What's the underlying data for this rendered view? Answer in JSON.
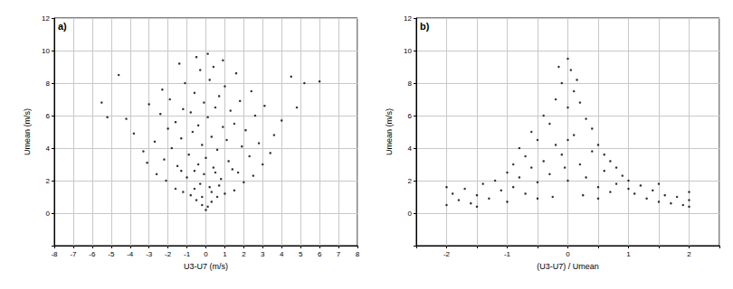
{
  "chart_data": [
    {
      "type": "scatter",
      "annotation": "a)",
      "xlabel": "U3-U7 (m/s)",
      "ylabel": "Umean (m/s)",
      "color": "#000000",
      "marker": "circle",
      "grid": true,
      "xlim": [
        -8,
        8
      ],
      "xticks": [
        -8,
        -7,
        -6,
        -5,
        -4,
        -3,
        -2,
        -1,
        0,
        1,
        2,
        3,
        4,
        5,
        6,
        7,
        8
      ],
      "ylim": [
        -2,
        12
      ],
      "yticks": [
        0,
        2,
        4,
        6,
        8,
        10,
        12
      ],
      "x": [
        0,
        0.1,
        -0.2,
        0.3,
        -0.5,
        0.6,
        -0.8,
        1.0,
        -1.2,
        1.5,
        -1.6,
        0.2,
        -0.3,
        2.0,
        -2.1,
        0.8,
        -1.0,
        2.5,
        -2.6,
        1.7,
        -0.6,
        0.4,
        -1.5,
        3.0,
        -3.1,
        1.2,
        -2.2,
        0,
        2.3,
        -0.9,
        3.4,
        -3.3,
        0.6,
        -1.8,
        1.9,
        -0.2,
        2.8,
        -2.7,
        1.1,
        -1.3,
        0.3,
        3.6,
        -3.8,
        -0.7,
        2.1,
        -2.0,
        0.9,
        -0.4,
        1.5,
        -1.6,
        4.0,
        -4.2,
        0.1,
        2.6,
        -2.4,
        -0.8,
        1.3,
        -1.2,
        0.5,
        3.1,
        -3.0,
        -0.1,
        1.8,
        -1.9,
        0.7,
        -0.6,
        2.4,
        -2.3,
        1.0,
        -1.1,
        0.2,
        4.5,
        -4.6,
        1.6,
        -0.3,
        0.4,
        -1.4,
        0.9,
        -0.5,
        0.1,
        5.2,
        6.0,
        -5.5,
        -5.2,
        4.8,
        -0.2,
        0.3,
        -0.6,
        0.7,
        -0.1,
        0.5,
        -0.4,
        1.4,
        -1.3
      ],
      "values": [
        0.2,
        0.4,
        0.5,
        0.7,
        0.8,
        1.0,
        1.1,
        1.2,
        1.3,
        1.4,
        1.5,
        1.6,
        1.8,
        1.9,
        2.0,
        2.1,
        2.2,
        2.3,
        2.4,
        2.5,
        2.6,
        2.8,
        2.9,
        3.0,
        3.1,
        3.2,
        3.3,
        3.4,
        3.5,
        3.6,
        3.7,
        3.8,
        3.9,
        4.0,
        4.1,
        4.2,
        4.3,
        4.4,
        4.5,
        4.6,
        4.7,
        4.8,
        4.9,
        5.0,
        5.1,
        5.2,
        5.3,
        5.4,
        5.5,
        5.6,
        5.7,
        5.8,
        5.9,
        6.0,
        6.1,
        6.2,
        6.3,
        6.4,
        6.5,
        6.6,
        6.7,
        6.8,
        6.9,
        7.0,
        7.2,
        7.4,
        7.5,
        7.6,
        7.8,
        8.0,
        8.2,
        8.4,
        8.5,
        8.6,
        8.8,
        9.0,
        9.2,
        9.4,
        9.6,
        9.8,
        8.0,
        8.1,
        6.8,
        5.9,
        6.5,
        1.0,
        1.3,
        1.5,
        1.7,
        2.4,
        2.5,
        3.0,
        2.7,
        2.6
      ]
    },
    {
      "type": "scatter",
      "annotation": "b)",
      "xlabel": "(U3-U7) / Umean",
      "ylabel": "Umean (m/s)",
      "color": "#000000",
      "marker": "circle",
      "grid": true,
      "xlim": [
        -2.5,
        2.5
      ],
      "xticks": [
        -2,
        -1,
        0,
        1,
        2
      ],
      "ylim": [
        -2,
        12
      ],
      "yticks": [
        0,
        2,
        4,
        6,
        8,
        10,
        12
      ],
      "x": [
        -2.0,
        -1.9,
        -1.8,
        -1.7,
        -1.6,
        -1.5,
        -1.4,
        -1.3,
        -1.2,
        -1.1,
        -1.0,
        -1.0,
        -0.9,
        -0.9,
        -0.8,
        -0.8,
        -0.7,
        -0.7,
        -0.6,
        -0.6,
        -0.5,
        -0.5,
        -0.4,
        -0.4,
        -0.3,
        -0.3,
        -0.2,
        -0.2,
        -0.1,
        -0.1,
        0,
        0,
        0,
        0.05,
        0.1,
        0.1,
        0.2,
        0.2,
        0.3,
        0.3,
        0.4,
        0.4,
        0.5,
        0.5,
        0.6,
        0.6,
        0.7,
        0.7,
        0.8,
        0.8,
        0.9,
        1.0,
        1.0,
        1.1,
        1.2,
        1.3,
        1.4,
        1.5,
        1.6,
        1.7,
        1.8,
        1.9,
        2.0,
        2.0,
        2.0,
        -2.0,
        -1.5,
        1.5,
        -0.15,
        0.15,
        -0.05,
        0,
        -0.25,
        0.25,
        0.5,
        -0.5
      ],
      "values": [
        0.5,
        1.2,
        0.8,
        1.5,
        0.6,
        1.1,
        1.8,
        0.9,
        2.0,
        1.4,
        2.5,
        0.7,
        3.0,
        1.6,
        2.2,
        4.0,
        1.2,
        3.5,
        5.0,
        2.8,
        1.9,
        4.5,
        6.0,
        3.2,
        5.5,
        2.4,
        7.0,
        4.2,
        8.0,
        3.6,
        9.5,
        6.5,
        2.0,
        8.8,
        7.5,
        4.8,
        6.8,
        3.0,
        5.8,
        2.2,
        5.2,
        3.8,
        4.2,
        1.6,
        3.6,
        2.6,
        3.2,
        1.3,
        2.8,
        1.8,
        2.3,
        1.5,
        2.0,
        1.2,
        1.7,
        0.9,
        1.4,
        0.7,
        1.1,
        0.6,
        1.0,
        0.5,
        0.8,
        1.3,
        0.4,
        1.6,
        0.4,
        1.8,
        9.0,
        8.2,
        2.8,
        4.5,
        1.0,
        1.1,
        0.9,
        0.9
      ]
    }
  ]
}
